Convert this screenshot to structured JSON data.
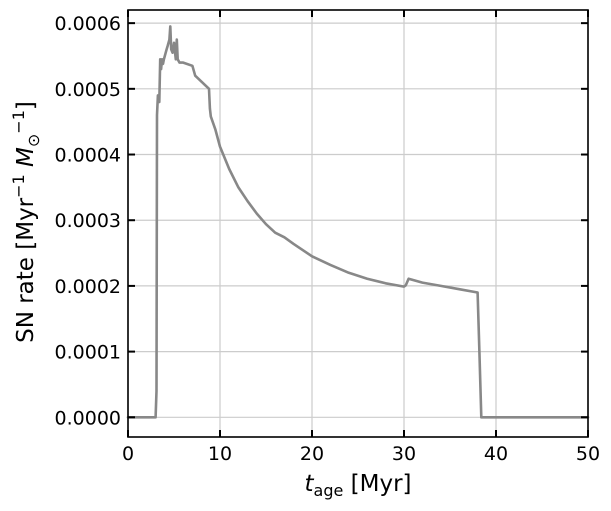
{
  "chart_data": {
    "type": "line",
    "title": "",
    "xlabel_main": "t",
    "xlabel_sub": "age",
    "xlabel_unit": " [Myr]",
    "ylabel_pre": "SN rate [Myr",
    "ylabel_exp1": "−1",
    "ylabel_M": "M",
    "ylabel_sub": "⊙",
    "ylabel_exp2": "−1",
    "ylabel_post": "]",
    "xlim": [
      0,
      50
    ],
    "ylim": [
      -3e-05,
      0.00062
    ],
    "xticks": [
      0,
      10,
      20,
      30,
      40,
      50
    ],
    "xtick_labels": [
      "0",
      "10",
      "20",
      "30",
      "40",
      "50"
    ],
    "yticks": [
      0,
      0.0001,
      0.0002,
      0.0003,
      0.0004,
      0.0005,
      0.0006
    ],
    "ytick_labels": [
      "0.0000",
      "0.0001",
      "0.0002",
      "0.0003",
      "0.0004",
      "0.0005",
      "0.0006"
    ],
    "grid": true,
    "line_color": "#888888",
    "series": [
      {
        "name": "SN rate",
        "x": [
          0,
          3.0,
          3.1,
          3.15,
          3.25,
          3.4,
          3.5,
          3.6,
          3.7,
          3.8,
          3.9,
          4.0,
          4.1,
          4.2,
          4.3,
          4.5,
          4.6,
          4.7,
          4.85,
          5.0,
          5.2,
          5.3,
          5.4,
          5.6,
          6.0,
          7.0,
          7.3,
          8.8,
          8.9,
          9.0,
          9.5,
          10.0,
          11.0,
          12.0,
          13.0,
          14.0,
          15.0,
          16.0,
          17.0,
          18.0,
          20.0,
          22.0,
          24.0,
          26.0,
          28.0,
          30.0,
          30.2,
          30.5,
          32.0,
          34.0,
          36.0,
          38.0,
          38.2,
          38.4,
          40.0,
          45.0,
          50.0
        ],
        "y": [
          0.0,
          0.0,
          4e-05,
          0.00046,
          0.00049,
          0.00048,
          0.000545,
          0.00053,
          0.000545,
          0.000538,
          0.000545,
          0.00055,
          0.000555,
          0.00056,
          0.000565,
          0.000575,
          0.000595,
          0.00056,
          0.000555,
          0.00057,
          0.000545,
          0.000575,
          0.000545,
          0.00054,
          0.00054,
          0.000535,
          0.00052,
          0.0005,
          0.00047,
          0.000458,
          0.000438,
          0.000412,
          0.000378,
          0.00035,
          0.000329,
          0.00031,
          0.000294,
          0.000281,
          0.000274,
          0.000264,
          0.000245,
          0.000232,
          0.00022,
          0.000211,
          0.000204,
          0.000199,
          0.000201,
          0.000211,
          0.000205,
          0.0002,
          0.000195,
          0.00019,
          0.0001,
          0.0,
          0.0,
          0.0,
          0.0
        ]
      }
    ]
  }
}
